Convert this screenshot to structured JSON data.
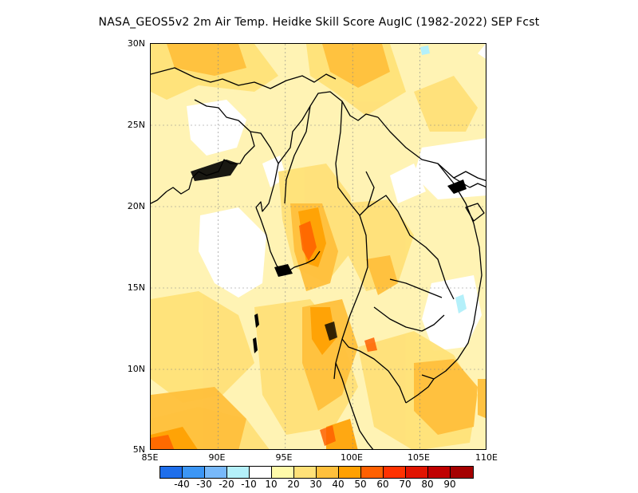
{
  "title": "NASA_GEOS5v2  2m Air Temp. Heidke Skill Score AugIC (1982-2022) SEP Fcst",
  "axes": {
    "lat_labels": [
      "30N",
      "25N",
      "20N",
      "15N",
      "10N",
      "5N"
    ],
    "lon_labels": [
      "85E",
      "90E",
      "95E",
      "100E",
      "105E",
      "110E"
    ]
  },
  "legend": {
    "colors": [
      "#1e6eeb",
      "#3c96f5",
      "#78b9fa",
      "#b4f0fa",
      "#ffffff",
      "#fffaaa",
      "#ffe178",
      "#ffc03c",
      "#ffa000",
      "#ff6000",
      "#ff3200",
      "#e11400",
      "#c00000",
      "#a50000"
    ],
    "labels": [
      "-40",
      "-30",
      "-20",
      "-10",
      "10",
      "20",
      "30",
      "40",
      "50",
      "60",
      "70",
      "80",
      "90"
    ]
  },
  "map": {
    "region": "Southeast Asia",
    "lat_range": [
      5,
      30
    ],
    "lon_range": [
      85,
      110
    ],
    "field": "Heidke Skill Score"
  }
}
